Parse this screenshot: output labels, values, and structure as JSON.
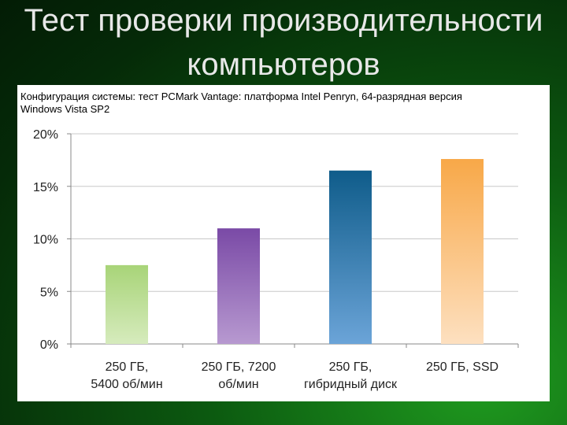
{
  "slide": {
    "title_line1": "Тест проверки производительности",
    "title_line2": "компьютеров"
  },
  "chart_data": {
    "type": "bar",
    "title_line1": "Конфигурация системы: тест PCMark Vantage: платформа Intel Penryn, 64-разрядная версия",
    "title_line2": "Windows Vista SP2",
    "categories": [
      [
        "250 ГБ,",
        "5400 об/мин"
      ],
      [
        "250 ГБ, 7200",
        "об/мин"
      ],
      [
        "250 ГБ,",
        "гибридный диск"
      ],
      [
        "250 ГБ, SSD"
      ]
    ],
    "values": [
      7.5,
      11.0,
      16.5,
      17.6
    ],
    "ylim": [
      0,
      20
    ],
    "yticks": [
      0,
      5,
      10,
      15,
      20
    ],
    "ytick_labels": [
      "0%",
      "5%",
      "10%",
      "15%",
      "20%"
    ],
    "grid": true,
    "bar_colors": [
      [
        "#a8d478",
        "#d6ebbd"
      ],
      [
        "#7a4aa6",
        "#b799d0"
      ],
      [
        "#0f5c8a",
        "#6ba4d8"
      ],
      [
        "#f8a848",
        "#fde0c0"
      ]
    ]
  }
}
